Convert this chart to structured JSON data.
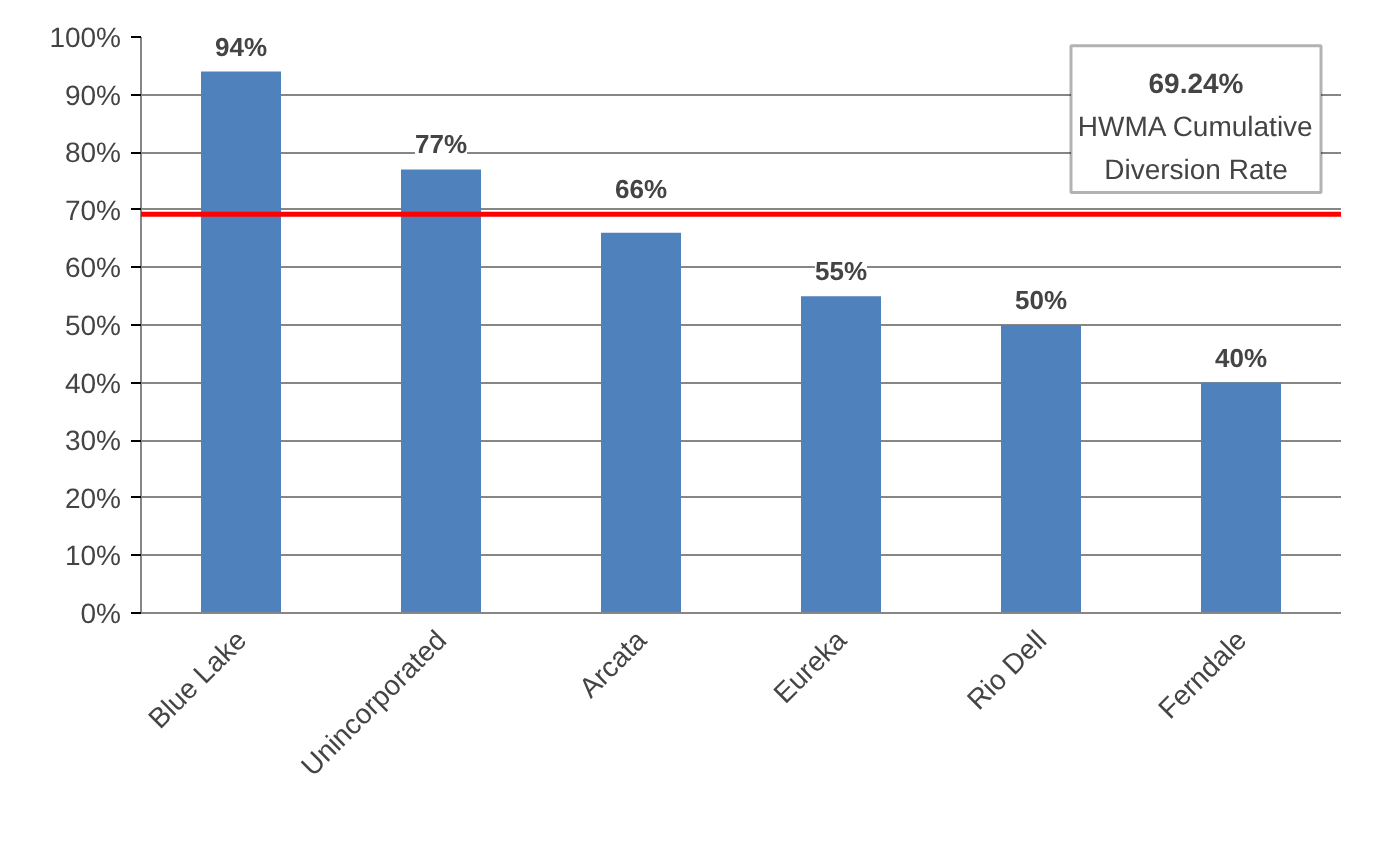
{
  "chart_data": {
    "type": "bar",
    "categories": [
      "Blue Lake",
      "Unincorporated",
      "Arcata",
      "Eureka",
      "Rio Dell",
      "Ferndale"
    ],
    "values": [
      94,
      77,
      66,
      55,
      50,
      40
    ],
    "value_labels": [
      "94%",
      "77%",
      "66%",
      "55%",
      "50%",
      "40%"
    ],
    "color": "#4f81bd",
    "ylim": [
      0,
      100
    ],
    "yticks": [
      {
        "value": 0,
        "label": "0%"
      },
      {
        "value": 10,
        "label": "10%"
      },
      {
        "value": 20,
        "label": "20%"
      },
      {
        "value": 30,
        "label": "30%"
      },
      {
        "value": 40,
        "label": "40%"
      },
      {
        "value": 50,
        "label": "50%"
      },
      {
        "value": 60,
        "label": "60%"
      },
      {
        "value": 70,
        "label": "70%"
      },
      {
        "value": 80,
        "label": "80%"
      },
      {
        "value": 90,
        "label": "90%"
      },
      {
        "value": 100,
        "label": "100%"
      }
    ],
    "grid": "y",
    "ref_lines": [
      {
        "axis": "y",
        "value": 69.24,
        "label": "69.24%\nHWMA Cumulative\nDiversion Rate",
        "color": "#ff0000"
      }
    ]
  }
}
